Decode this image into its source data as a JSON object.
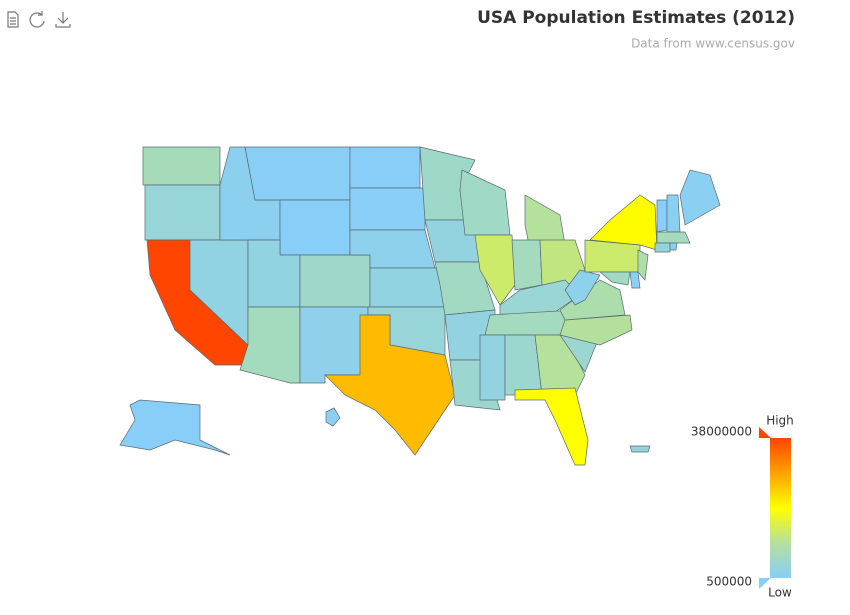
{
  "chart_data": {
    "type": "choropleth",
    "title": "USA Population Estimates (2012)",
    "subtitle": "Data from www.census.gov",
    "values": [
      6900000,
      3900000,
      38000000,
      2760000,
      1600000,
      1000000,
      580000,
      2850000,
      6550000,
      5200000,
      2090000,
      700000,
      830000,
      1860000,
      2890000,
      3800000,
      26000000,
      5380000,
      3070000,
      6000000,
      2950000,
      4600000,
      5730000,
      12880000,
      9880000,
      6540000,
      11540000,
      4380000,
      6460000,
      2980000,
      4820000,
      9920000,
      19300000,
      4720000,
      9750000,
      8190000,
      1860000,
      12760000,
      19570000,
      8860000,
      5880000,
      920000,
      630000,
      1320000,
      1330000,
      6650000,
      3590000,
      1050000,
      730000,
      1390000,
      3670000
    ],
    "clim": [
      500000,
      38000000
    ],
    "cticks": [
      500000,
      38000000
    ],
    "legend_high": "High",
    "legend_low": "Low",
    "color_stops": [
      {
        "offset": 0,
        "color": "#87cefa"
      },
      {
        "offset": 0.25,
        "color": "#b4e19c"
      },
      {
        "offset": 0.5,
        "color": "#ffff00"
      },
      {
        "offset": 0.7,
        "color": "#ffb400"
      },
      {
        "offset": 1,
        "color": "#ff4500"
      }
    ]
  }
}
